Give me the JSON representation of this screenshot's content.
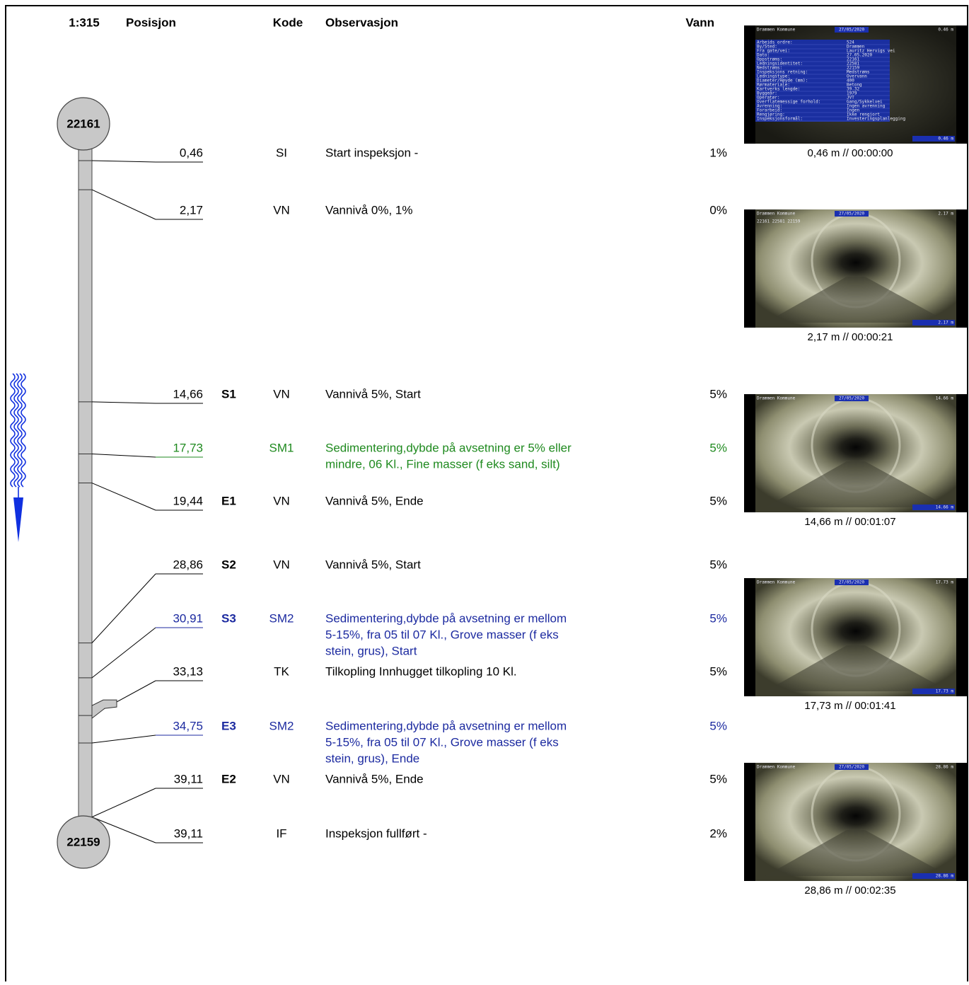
{
  "header": {
    "scale": "1:315",
    "position": "Posisjon",
    "code": "Kode",
    "observation": "Observasjon",
    "water": "Vann"
  },
  "manholes": {
    "top": "22161",
    "bottom": "22159"
  },
  "rows": [
    {
      "position": "0,46",
      "code": "SI",
      "observation": [
        "Start inspeksjon -"
      ],
      "water": "1%"
    },
    {
      "position": "2,17",
      "code": "VN",
      "observation": [
        "Vannivå 0%, 1%"
      ],
      "water": "0%"
    },
    {
      "position": "14,66",
      "mark": "S1",
      "code": "VN",
      "observation": [
        "Vannivå 5%, Start"
      ],
      "water": "5%"
    },
    {
      "position": "17,73",
      "code": "SM1",
      "observation": [
        "Sedimentering,dybde på avsetning er 5% eller",
        "mindre,  06 Kl., Fine masser (f eks sand, silt)"
      ],
      "water": "5%",
      "color": "#1f8a1f"
    },
    {
      "position": "19,44",
      "mark": "E1",
      "code": "VN",
      "observation": [
        "Vannivå 5%, Ende"
      ],
      "water": "5%"
    },
    {
      "position": "28,86",
      "mark": "S2",
      "code": "VN",
      "observation": [
        "Vannivå 5%, Start"
      ],
      "water": "5%"
    },
    {
      "position": "30,91",
      "mark": "S3",
      "code": "SM2",
      "observation": [
        "Sedimentering,dybde på avsetning er mellom",
        "5-15%, fra 05 til 07 Kl., Grove masser (f eks",
        "stein, grus), Start"
      ],
      "water": "5%",
      "color": "#1c2aa0"
    },
    {
      "position": "33,13",
      "code": "TK",
      "observation": [
        "Tilkopling Innhugget tilkopling  10 Kl."
      ],
      "water": "5%"
    },
    {
      "position": "34,75",
      "mark": "E3",
      "code": "SM2",
      "observation": [
        "Sedimentering,dybde på avsetning er mellom",
        "5-15%, fra 05 til 07 Kl., Grove masser (f eks",
        "stein, grus), Ende"
      ],
      "water": "5%",
      "color": "#1c2aa0"
    },
    {
      "position": "39,11",
      "mark": "E2",
      "code": "VN",
      "observation": [
        "Vannivå 5%, Ende"
      ],
      "water": "5%"
    },
    {
      "position": "39,11",
      "code": "IF",
      "observation": [
        "Inspeksjon fullført -"
      ],
      "water": "2%"
    }
  ],
  "photos": [
    {
      "company": "Drammen Kommune",
      "date": "27/05/2020",
      "distance": "0.46 m",
      "caption": "0,46 m // 00:00:00",
      "info": [
        [
          "Arbeids ordre:",
          "524"
        ],
        [
          "By/Sted:",
          "Drammen"
        ],
        [
          "Fra gate/vei:",
          "Lauritz Hervigs vei"
        ],
        [
          "Dato:",
          "27.05.2020"
        ],
        [
          "Oppstrøms:",
          "22161"
        ],
        [
          "Ledningsidentitet:",
          "22581"
        ],
        [
          "Nedstrøms:",
          "22159"
        ],
        [
          "Inspeksjons retning:",
          "Medstrøms"
        ],
        [
          "Ledningstype:",
          "Overvann"
        ],
        [
          "Diameter/Høyde (mm):",
          "400"
        ],
        [
          "Rørmateriale:",
          "Betong"
        ],
        [
          "Kartverks lengde:",
          "39.32"
        ],
        [
          "Byggeår:",
          "1979"
        ],
        [
          "Operatør:",
          "JVT"
        ],
        [
          "Overflatemessige forhold:",
          "Gang/Sykkelvei"
        ],
        [
          "Avrenning:",
          "Ingen avrenning"
        ],
        [
          "Forarbeid:",
          "Ingen"
        ],
        [
          "Rengjøring:",
          "Ikke rengjort"
        ],
        [
          "Inspeksjonsformål:",
          "Investeringsplanlegging"
        ]
      ]
    },
    {
      "company": "Drammen Kommune",
      "date": "27/05/2020",
      "distance": "2.17 m",
      "caption": "2,17 m // 00:00:21",
      "ids": "22161 22581 22159"
    },
    {
      "company": "Drammen Kommune",
      "date": "27/05/2020",
      "distance": "14.66 m",
      "caption": "14,66 m // 00:01:07"
    },
    {
      "company": "Drammen Kommune",
      "date": "27/05/2020",
      "distance": "17.73 m",
      "caption": "17,73 m // 00:01:41"
    },
    {
      "company": "Drammen Kommune",
      "date": "27/05/2020",
      "distance": "28.86 m",
      "caption": "28,86 m // 00:02:35"
    }
  ]
}
